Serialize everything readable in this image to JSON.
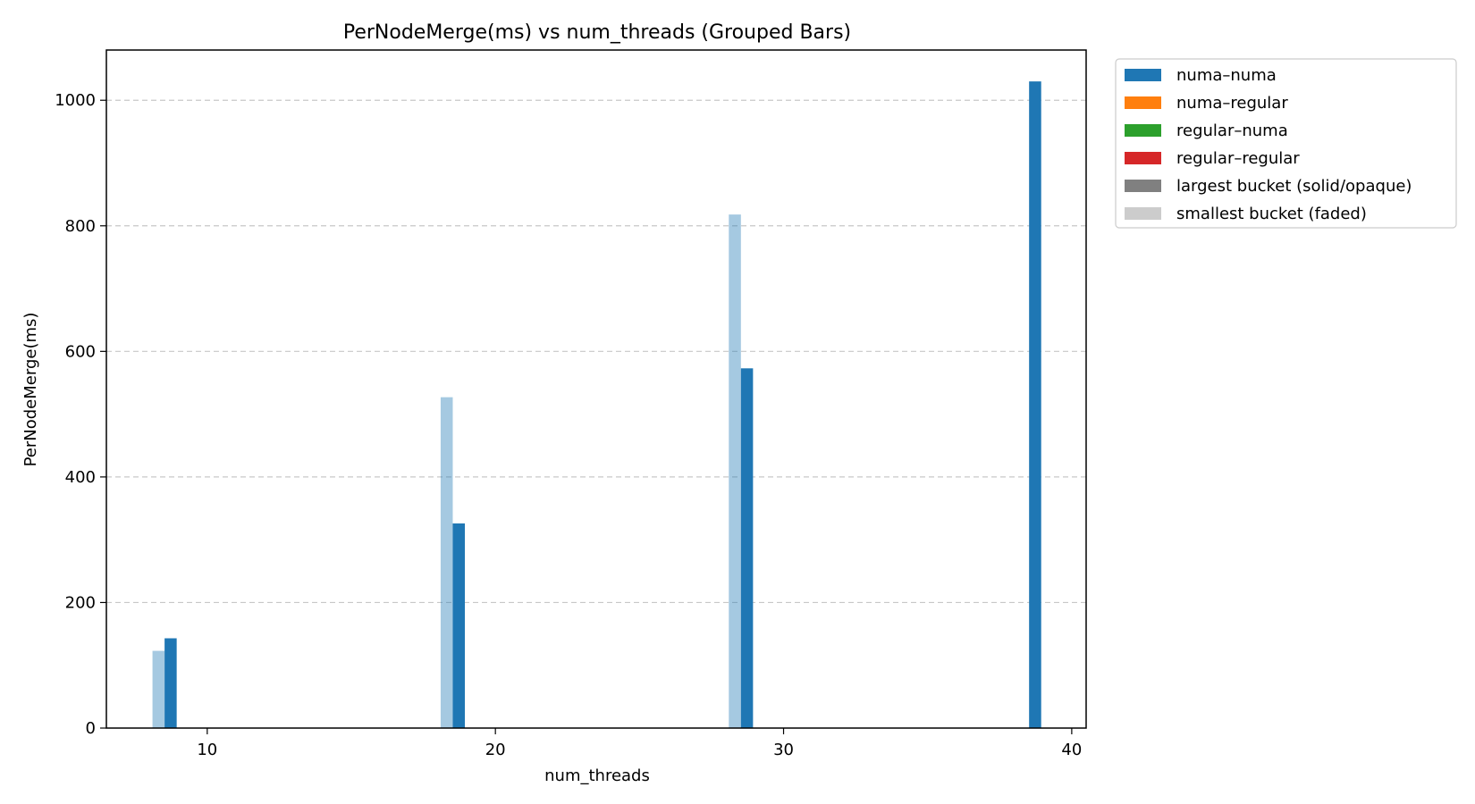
{
  "chart_data": {
    "type": "bar",
    "title": "PerNodeMerge(ms) vs num_threads (Grouped Bars)",
    "xlabel": "num_threads",
    "ylabel": "PerNodeMerge(ms)",
    "xlim": [
      6.5,
      40.5
    ],
    "ylim": [
      0,
      1080
    ],
    "xticks": [
      10,
      20,
      30,
      40
    ],
    "yticks": [
      0,
      200,
      400,
      600,
      800,
      1000
    ],
    "grid": "y-dashed",
    "legend_position": "outside-top-right",
    "series": [
      {
        "name": "numa–numa",
        "color": "#1f77b4",
        "bars": [
          {
            "x": 10,
            "smallest_bucket": 123,
            "largest_bucket": 143
          },
          {
            "x": 20,
            "smallest_bucket": 527,
            "largest_bucket": 326
          },
          {
            "x": 30,
            "smallest_bucket": 818,
            "largest_bucket": 573
          },
          {
            "x": 40,
            "smallest_bucket": null,
            "largest_bucket": 1030
          }
        ]
      },
      {
        "name": "numa–regular",
        "color": "#ff7f0e",
        "bars": []
      },
      {
        "name": "regular–numa",
        "color": "#2ca02c",
        "bars": []
      },
      {
        "name": "regular–regular",
        "color": "#d62728",
        "bars": []
      }
    ],
    "legend": [
      {
        "label": "numa–numa",
        "color": "#1f77b4"
      },
      {
        "label": "numa–regular",
        "color": "#ff7f0e"
      },
      {
        "label": "regular–numa",
        "color": "#2ca02c"
      },
      {
        "label": "regular–regular",
        "color": "#d62728"
      },
      {
        "label": "largest bucket (solid/opaque)",
        "color": "#808080"
      },
      {
        "label": "smallest bucket (faded)",
        "color": "#cccccc"
      }
    ]
  }
}
